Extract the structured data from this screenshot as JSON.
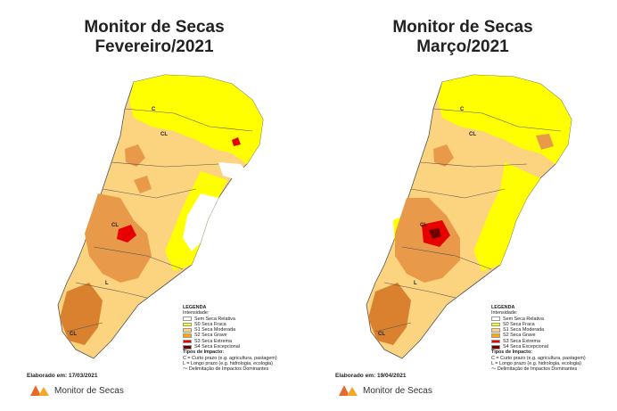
{
  "panels": [
    {
      "title_line1": "Monitor de Secas",
      "title_line2": "Fevereiro/2021",
      "elaborated": "Elaborado em: 17/03/2021"
    },
    {
      "title_line1": "Monitor de Secas",
      "title_line2": "Março/2021",
      "elaborated": "Elaborado em: 19/04/2021"
    }
  ],
  "legend": {
    "title": "LEGENDA",
    "intensity_label": "Intensidade:",
    "items": [
      {
        "label": "Sem Seca Relativa",
        "color": "#ffffff"
      },
      {
        "label": "S0 Seca Fraca",
        "color": "#ffff00"
      },
      {
        "label": "S1 Seca Moderada",
        "color": "#fcd37f"
      },
      {
        "label": "S2 Seca Grave",
        "color": "#ffaa00"
      },
      {
        "label": "S3 Seca Extrema",
        "color": "#e60000"
      },
      {
        "label": "S4 Seca Excepcional",
        "color": "#730000"
      }
    ],
    "impact_title": "Tipos de Impacto:",
    "impact_items": [
      "C = Curto prazo (e.g. agricultura, pastagem)",
      "L = Longo prazo (e.g. hidrologia, ecologia)",
      "Delimitação de Impactos Dominantes"
    ]
  },
  "brand": "Monitor de Secas",
  "colors": {
    "none": "#ffffff",
    "s0": "#ffff00",
    "s1": "#fcd37f",
    "s2": "#e89a4a",
    "s2_dark": "#d9812e",
    "s3": "#e60000",
    "s4": "#730000"
  },
  "map_labels": [
    "C",
    "CL",
    "L",
    "CL",
    "C",
    "CL",
    "L",
    "CL"
  ]
}
